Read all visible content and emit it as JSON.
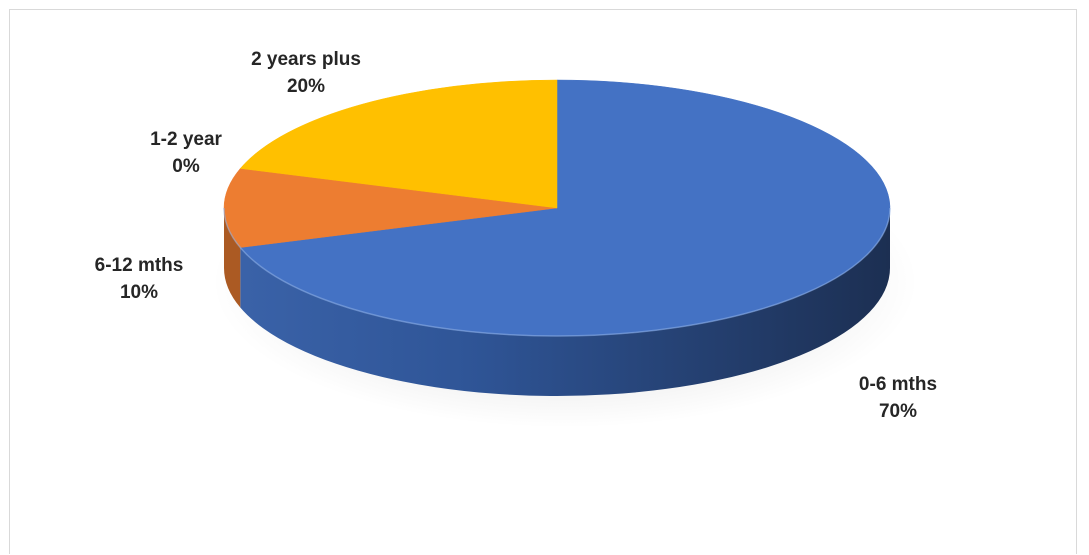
{
  "chart_data": {
    "type": "pie",
    "style": "3d",
    "title": "",
    "slices": [
      {
        "label": "0-6 mths",
        "value": 70,
        "display": "70%",
        "color": "#4472C4"
      },
      {
        "label": "6-12 mths",
        "value": 10,
        "display": "10%",
        "color": "#ED7D31"
      },
      {
        "label": "1-2 year",
        "value": 0,
        "display": "0%",
        "color": "#A5A5A5"
      },
      {
        "label": "2 years plus",
        "value": 20,
        "display": "20%",
        "color": "#FFC000"
      }
    ],
    "legend": "none",
    "data_labels": "outside"
  }
}
